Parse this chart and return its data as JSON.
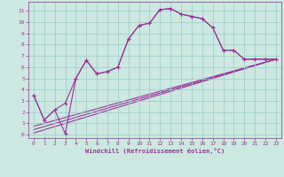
{
  "xlabel": "Windchill (Refroidissement éolien,°C)",
  "bg_color": "#cce8e0",
  "grid_color": "#99cccc",
  "line_color": "#993399",
  "xlim": [
    -0.5,
    23.5
  ],
  "ylim": [
    -0.3,
    11.8
  ],
  "xticks": [
    0,
    1,
    2,
    3,
    4,
    5,
    6,
    7,
    8,
    9,
    10,
    11,
    12,
    13,
    14,
    15,
    16,
    17,
    18,
    19,
    20,
    21,
    22,
    23
  ],
  "yticks": [
    0,
    1,
    2,
    3,
    4,
    5,
    6,
    7,
    8,
    9,
    10,
    11
  ],
  "curve1_x": [
    0,
    1,
    2,
    3,
    4,
    5,
    6,
    7,
    8,
    9,
    10,
    11,
    12,
    13,
    14,
    15,
    16,
    17,
    18,
    19,
    20,
    21,
    22,
    23
  ],
  "curve1_y": [
    3.5,
    1.3,
    2.2,
    2.8,
    5.0,
    6.6,
    5.4,
    5.6,
    6.0,
    8.5,
    9.7,
    9.9,
    11.1,
    11.2,
    10.7,
    10.5,
    10.3,
    9.5,
    7.5,
    7.5,
    6.7,
    6.7,
    6.7,
    6.7
  ],
  "curve2_x": [
    0,
    1,
    2,
    3,
    4,
    5,
    6,
    7,
    8,
    9,
    10,
    11,
    12,
    13,
    14,
    15,
    16,
    17,
    18,
    19,
    20,
    21,
    22,
    23
  ],
  "curve2_y": [
    3.5,
    1.3,
    2.2,
    0.1,
    5.0,
    6.6,
    5.4,
    5.6,
    6.0,
    8.5,
    9.7,
    9.9,
    11.1,
    11.2,
    10.7,
    10.5,
    10.3,
    9.5,
    7.5,
    7.5,
    6.7,
    6.7,
    6.7,
    6.7
  ],
  "line1_x": [
    0,
    23
  ],
  "line1_y": [
    0.15,
    6.7
  ],
  "line2_x": [
    0,
    23
  ],
  "line2_y": [
    0.45,
    6.7
  ],
  "line3_x": [
    0,
    23
  ],
  "line3_y": [
    0.75,
    6.7
  ]
}
